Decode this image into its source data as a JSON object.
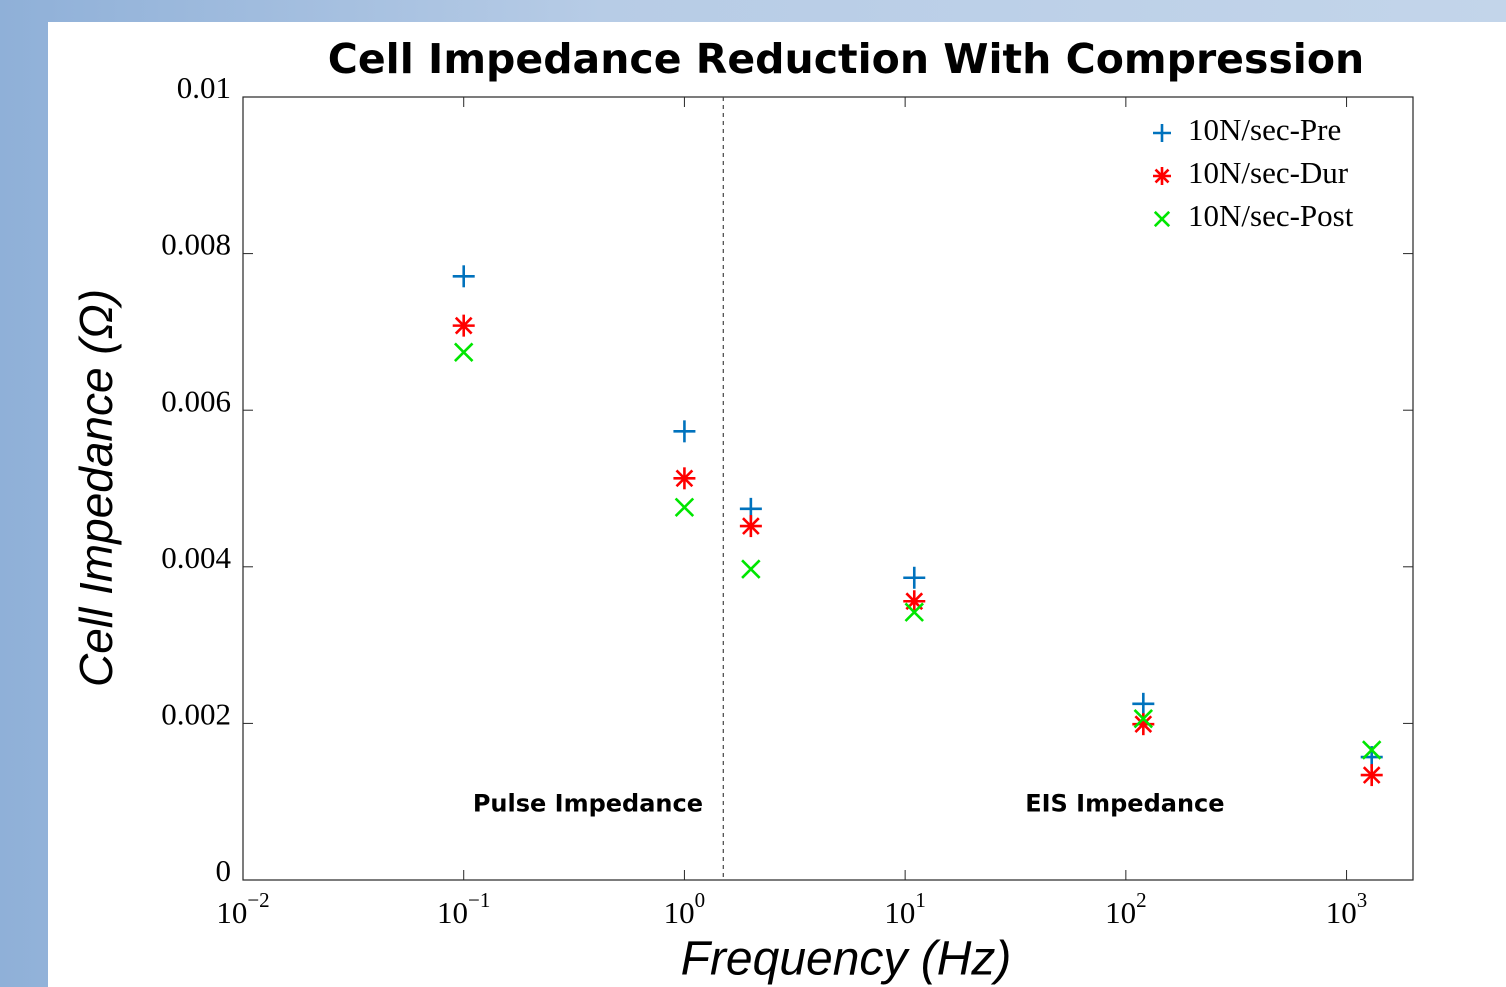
{
  "chart_data": {
    "type": "scatter",
    "title": "Cell Impedance Reduction With Compression",
    "x_label": "Frequency (Hz)",
    "y_label": "Cell Impedance (Ω)",
    "log_x": true,
    "xlim": [
      0.01,
      2000
    ],
    "ylim": [
      0,
      0.01
    ],
    "xticks": [
      {
        "value": 0.01,
        "label": "10−2"
      },
      {
        "value": 0.1,
        "label": "10−1"
      },
      {
        "value": 1,
        "label": "100"
      },
      {
        "value": 10,
        "label": "101"
      },
      {
        "value": 100,
        "label": "102"
      },
      {
        "value": 1000,
        "label": "103"
      }
    ],
    "yticks": [
      0,
      0.002,
      0.004,
      0.006,
      0.008,
      0.01
    ],
    "legend": "upper right",
    "divider_x": 1.5,
    "annotations": [
      {
        "text": "Pulse Impedance",
        "x": 0.11,
        "y": 0.001
      },
      {
        "text": "EIS Impedance",
        "x": 35,
        "y": 0.001
      }
    ],
    "series": [
      {
        "name": "10N/sec-Pre",
        "color": "#0072bd",
        "marker": "plus",
        "x": [
          0.1,
          1,
          2,
          11,
          120,
          1300
        ],
        "values": [
          0.00771,
          0.00573,
          0.00474,
          0.00386,
          0.00225,
          0.00157
        ]
      },
      {
        "name": "10N/sec-Dur",
        "color": "#ff0000",
        "marker": "star",
        "x": [
          0.1,
          1,
          2,
          11,
          120,
          1300
        ],
        "values": [
          0.00708,
          0.00513,
          0.00452,
          0.00356,
          0.00199,
          0.00134
        ]
      },
      {
        "name": "10N/sec-Post",
        "color": "#00e600",
        "marker": "cross",
        "x": [
          0.1,
          1,
          2,
          11,
          120,
          1300
        ],
        "values": [
          0.00674,
          0.00476,
          0.00397,
          0.00342,
          0.00206,
          0.00166
        ]
      }
    ]
  }
}
